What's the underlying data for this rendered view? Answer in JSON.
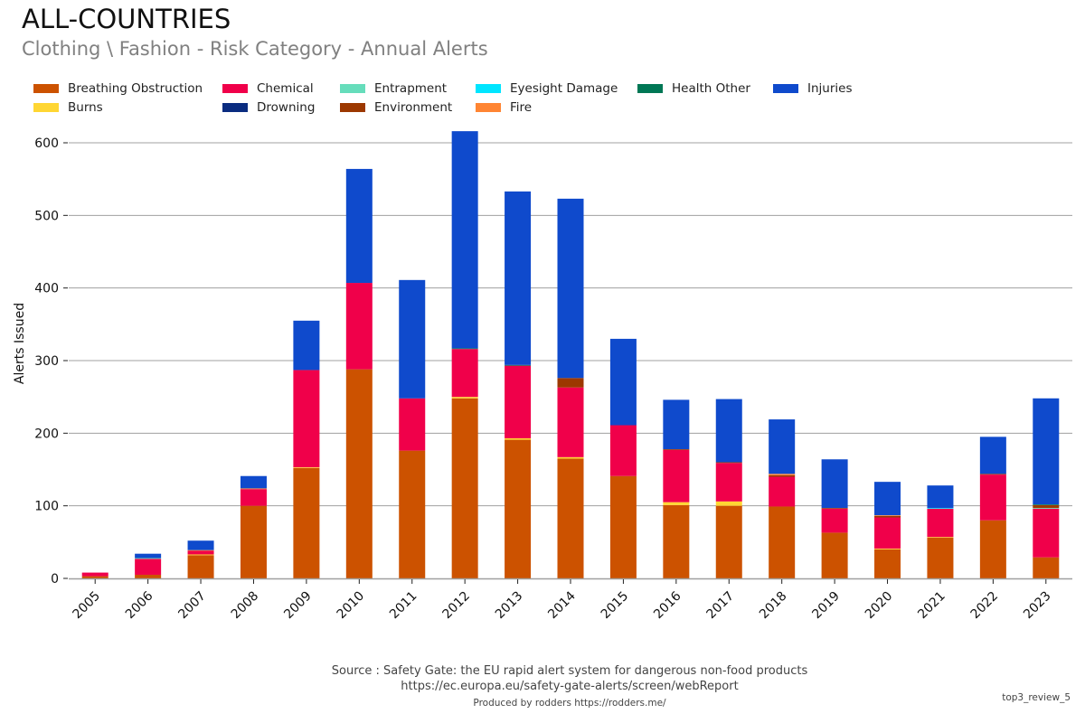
{
  "header": {
    "title": "ALL-COUNTRIES",
    "subtitle": "Clothing \\ Fashion - Risk Category - Annual Alerts"
  },
  "footer": {
    "source": "Source : Safety Gate: the EU rapid alert system for dangerous non-food products",
    "url": "https://ec.europa.eu/safety-gate-alerts/screen/webReport",
    "produced_by": "Produced by rodders https://rodders.me/",
    "tag": "top3_review_5"
  },
  "chart_data": {
    "type": "bar",
    "stacked": true,
    "title": "ALL-COUNTRIES",
    "subtitle": "Clothing \\ Fashion - Risk Category - Annual Alerts",
    "xlabel": "",
    "ylabel": "Alerts Issued",
    "ylim": [
      0,
      630
    ],
    "yticks": [
      0,
      100,
      200,
      300,
      400,
      500,
      600
    ],
    "grid": true,
    "legend_position": "top-left",
    "categories": [
      "2005",
      "2006",
      "2007",
      "2008",
      "2009",
      "2010",
      "2011",
      "2012",
      "2013",
      "2014",
      "2015",
      "2016",
      "2017",
      "2018",
      "2019",
      "2020",
      "2021",
      "2022",
      "2023"
    ],
    "series": [
      {
        "name": "Breathing Obstruction",
        "color": "#cc5200",
        "values": [
          3,
          5,
          32,
          100,
          152,
          288,
          176,
          248,
          191,
          165,
          141,
          101,
          100,
          99,
          63,
          40,
          56,
          80,
          29
        ]
      },
      {
        "name": "Burns",
        "color": "#ffd633",
        "values": [
          0,
          0,
          1,
          0,
          1,
          0,
          0,
          2,
          2,
          2,
          0,
          4,
          6,
          0,
          0,
          1,
          1,
          0,
          0
        ]
      },
      {
        "name": "Chemical",
        "color": "#f0004a",
        "values": [
          5,
          22,
          5,
          23,
          134,
          119,
          72,
          66,
          100,
          96,
          70,
          72,
          53,
          41,
          33,
          43,
          39,
          63,
          67
        ]
      },
      {
        "name": "Drowning",
        "color": "#0a2c80",
        "values": [
          0,
          0,
          0,
          0,
          0,
          0,
          0,
          0,
          0,
          0,
          0,
          0,
          0,
          0,
          0,
          0,
          0,
          0,
          0
        ]
      },
      {
        "name": "Entrapment",
        "color": "#66ddbb",
        "values": [
          0,
          1,
          0,
          0,
          0,
          0,
          0,
          0,
          0,
          0,
          0,
          0,
          0,
          0,
          0,
          0,
          0,
          0,
          1
        ]
      },
      {
        "name": "Environment",
        "color": "#9c3800",
        "values": [
          0,
          0,
          0,
          0,
          0,
          0,
          0,
          0,
          0,
          13,
          0,
          1,
          1,
          2,
          1,
          2,
          0,
          1,
          4
        ]
      },
      {
        "name": "Eyesight Damage",
        "color": "#00e5ff",
        "values": [
          0,
          0,
          0,
          0,
          0,
          0,
          0,
          0,
          0,
          0,
          0,
          0,
          0,
          0,
          0,
          0,
          1,
          0,
          0
        ]
      },
      {
        "name": "Fire",
        "color": "#ff8533",
        "values": [
          0,
          0,
          1,
          1,
          0,
          0,
          0,
          0,
          0,
          0,
          0,
          0,
          0,
          2,
          0,
          1,
          0,
          0,
          0
        ]
      },
      {
        "name": "Health Other",
        "color": "#007755",
        "values": [
          0,
          0,
          0,
          0,
          0,
          0,
          0,
          1,
          1,
          0,
          0,
          0,
          0,
          0,
          0,
          0,
          0,
          0,
          1
        ]
      },
      {
        "name": "Injuries",
        "color": "#0f4acc",
        "values": [
          0,
          6,
          13,
          17,
          68,
          157,
          163,
          299,
          239,
          247,
          119,
          68,
          87,
          75,
          67,
          46,
          31,
          51,
          146
        ]
      }
    ]
  },
  "legend_layout": [
    [
      "Breathing Obstruction",
      "Chemical",
      "Entrapment",
      "Eyesight Damage",
      "Health Other",
      "Injuries"
    ],
    [
      "Burns",
      "Drowning",
      "Environment",
      "Fire"
    ]
  ]
}
